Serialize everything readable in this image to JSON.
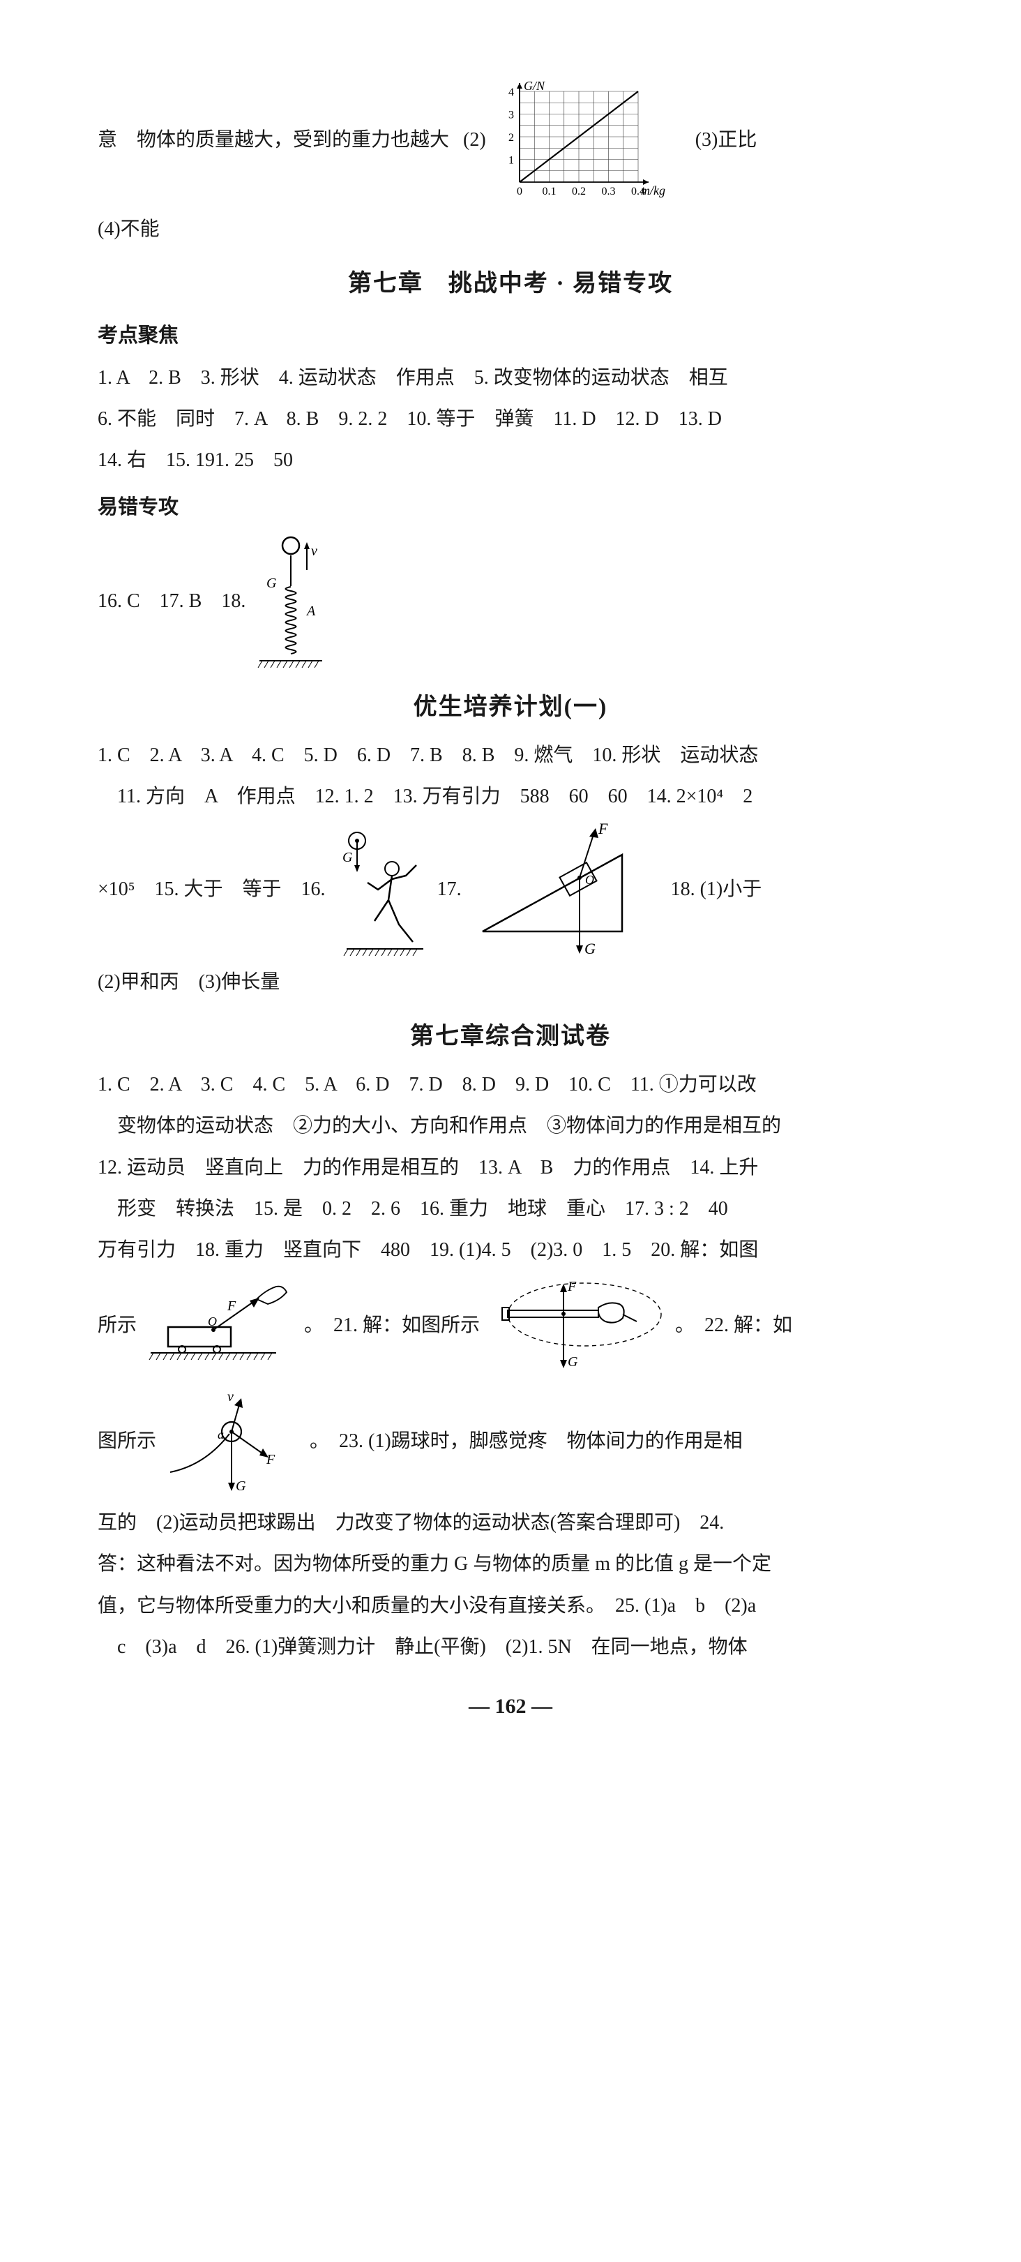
{
  "top": {
    "prefix": "意",
    "text1": "物体的质量越大，受到的重力也越大",
    "q2": "(2)",
    "q3": "(3)正比",
    "q4": "(4)不能"
  },
  "chart_gn": {
    "ylabel": "G/N",
    "xlabel": "m/kg",
    "xticks": [
      "0",
      "0.1",
      "0.2",
      "0.3",
      "0.4"
    ],
    "yticks": [
      "1",
      "2",
      "3",
      "4"
    ],
    "axis_color": "#000000",
    "grid_color": "#333333",
    "line_color": "#000000",
    "background": "#ffffff"
  },
  "ch7_head": "第七章　挑战中考 · 易错专攻",
  "kaodian": "考点聚焦",
  "kd_items": {
    "l1": "1. A　2. B　3. 形状　4. 运动状态　作用点　5. 改变物体的运动状态　相互",
    "l2": "6. 不能　同时　7. A　8. B　9. 2. 2　10. 等于　弹簧　11. D　12. D　13. D",
    "l3": "14. 右　15. 191. 25　50"
  },
  "yicuo": "易错专攻",
  "yc_items": {
    "pre": "16. C　17. B　18."
  },
  "spring_fig": {
    "label_v": "v",
    "label_G": "G",
    "label_A": "A",
    "stroke": "#000000"
  },
  "plan1_head": "优生培养计划(一)",
  "plan1": {
    "l1": "1. C　2. A　3. A　4. C　5. D　6. D　7. B　8. B　9. 燃气　10. 形状　运动状态",
    "l2": "　11. 方向　A　作用点　12. 1. 2　13. 万有引力　588　60　60　14. 2×10⁴　2",
    "l3pre": "×10⁵　15. 大于　等于　16.",
    "l3mid": "17.",
    "l3post": "18. (1)小于",
    "l4": "(2)甲和丙　(3)伸长量"
  },
  "kick_fig": {
    "label_G": "G",
    "stroke": "#000000"
  },
  "incline_fig": {
    "label_F": "F",
    "label_O": "O",
    "label_G": "G",
    "stroke": "#000000"
  },
  "test_head": "第七章综合测试卷",
  "test": {
    "l1": "1. C　2. A　3. C　4. C　5. A　6. D　7. D　8. D　9. D　10. C　11. ①力可以改",
    "l2": "变物体的运动状态　②力的大小、方向和作用点　③物体间力的作用是相互的",
    "l3": "12. 运动员　竖直向上　力的作用是相互的　13. A　B　力的作用点　14. 上升",
    "l4": "　形变　转换法　15. 是　0. 2　2. 6　16. 重力　地球　重心　17. 3 : 2　40",
    "l5": "万有引力　18. 重力　竖直向下　480　19. (1)4. 5　(2)3. 0　1. 5　20. 解：如图",
    "l6pre": "所示",
    "l6mid": "。　21. 解：如图所示",
    "l6post": "。　22. 解：如",
    "l7pre": "图所示",
    "l7post": "。　23. (1)踢球时，脚感觉疼　物体间力的作用是相",
    "l8": "互的　(2)运动员把球踢出　力改变了物体的运动状态(答案合理即可)　24.",
    "l9": "答：这种看法不对。因为物体所受的重力 G 与物体的质量 m 的比值 g 是一个定",
    "l10": "值，它与物体所受重力的大小和质量的大小没有直接关系。　25. (1)a　b　(2)a",
    "l11": "　c　(3)a　d　26. (1)弹簧测力计　静止(平衡)　(2)1. 5N　在同一地点，物体"
  },
  "cart_fig": {
    "label_F": "F",
    "label_O": "O",
    "stroke": "#000000"
  },
  "hand_fig": {
    "label_F": "F",
    "label_G": "G",
    "stroke": "#000000"
  },
  "ball_fig": {
    "label_v": "v",
    "label_a": "a",
    "label_F": "F",
    "label_G": "G",
    "stroke": "#000000"
  },
  "page_no": "— 162 —"
}
